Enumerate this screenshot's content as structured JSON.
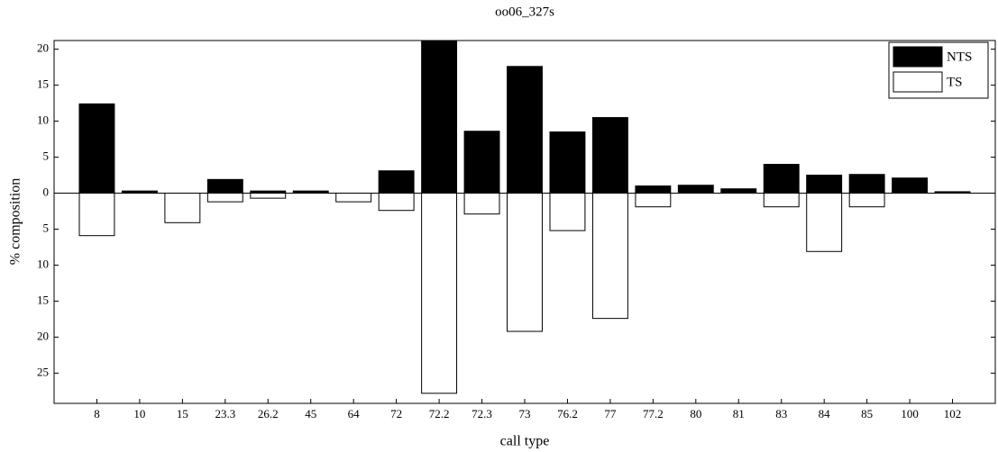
{
  "chart_data": {
    "type": "bar",
    "title": "oo06_327s",
    "x_label": "call type",
    "y_label": "% composition",
    "categories": [
      "8",
      "10",
      "15",
      "23.3",
      "26.2",
      "45",
      "64",
      "72",
      "72.2",
      "72.3",
      "73",
      "76.2",
      "77",
      "77.2",
      "80",
      "81",
      "83",
      "84",
      "85",
      "100",
      "102"
    ],
    "series": [
      {
        "name": "NTS",
        "color": "#000000",
        "values": [
          12.4,
          0.3,
          0,
          1.9,
          0.3,
          0.3,
          0,
          3.1,
          21.1,
          8.6,
          17.6,
          8.5,
          10.5,
          1.0,
          1.1,
          0.6,
          4.0,
          2.5,
          2.6,
          2.1,
          0.2
        ]
      },
      {
        "name": "TS",
        "color": "#ffffff",
        "values": [
          -5.9,
          0,
          -4.1,
          -1.2,
          -0.7,
          0,
          -1.2,
          -2.4,
          -27.8,
          -2.9,
          -19.2,
          -5.2,
          -17.4,
          -1.9,
          0,
          0,
          -1.9,
          -8.1,
          -1.9,
          0,
          0
        ]
      }
    ],
    "ylim": [
      -29.2,
      21.2
    ],
    "yticks": [
      {
        "value": -25,
        "label": "25"
      },
      {
        "value": -20,
        "label": "20"
      },
      {
        "value": -15,
        "label": "15"
      },
      {
        "value": -10,
        "label": "10"
      },
      {
        "value": -5,
        "label": "5"
      },
      0,
      5,
      10,
      15,
      20
    ],
    "legend": "upper right"
  }
}
